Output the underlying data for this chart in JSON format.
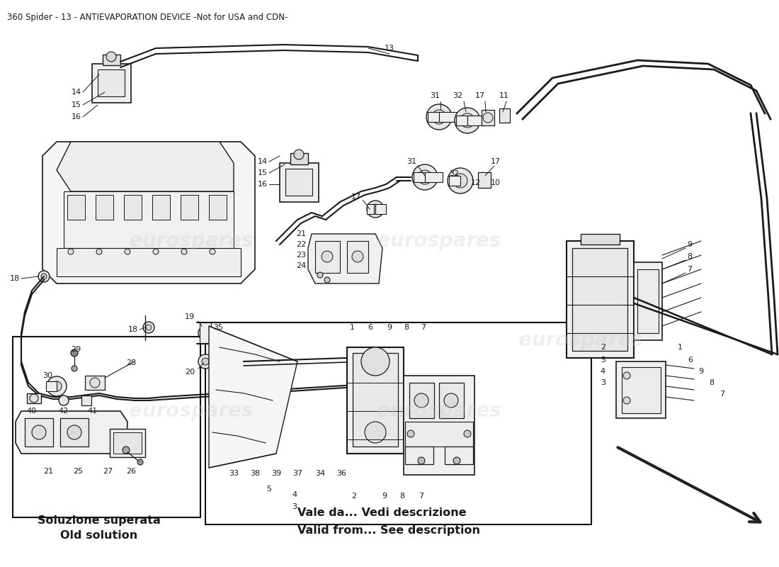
{
  "title": "360 Spider - 13 - ANTIEVAPORATION DEVICE -Not for USA and CDN-",
  "title_fontsize": 8.5,
  "background_color": "#ffffff",
  "watermark_text": "eurospares",
  "watermark_color": "#cccccc",
  "watermark_alpha": 0.3,
  "box1_label_it": "Soluzione superata",
  "box1_label_en": "Old solution",
  "box2_label_it": "Vale da... Vedi descrizione",
  "box2_label_en": "Valid from... See description",
  "label_fontsize": 11.5,
  "line_color": "#1a1a1a",
  "text_color": "#1a1a1a",
  "pn_fontsize": 8.0,
  "pn_fontsize_small": 7.5
}
